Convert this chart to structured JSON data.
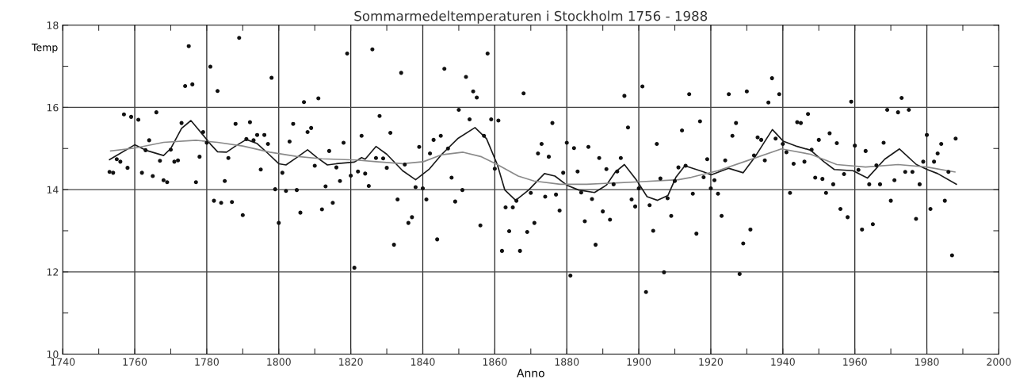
{
  "chart_data": {
    "type": "scatter",
    "title": "Sommarmedeltemperaturen i Stockholm 1756 - 1988",
    "xlabel": "Anno",
    "ylabel": "Temp",
    "xlim": [
      1740,
      2000
    ],
    "ylim": [
      10,
      18
    ],
    "xticks": [
      1740,
      {
        "value": 1750,
        "label": null
      },
      1760,
      {
        "value": 1770,
        "label": null
      },
      1780,
      {
        "value": 1790,
        "label": null
      },
      1800,
      {
        "value": 1810,
        "label": null
      },
      1820,
      {
        "value": 1830,
        "label": null
      },
      1840,
      {
        "value": 1850,
        "label": null
      },
      1860,
      {
        "value": 1870,
        "label": null
      },
      1880,
      {
        "value": 1890,
        "label": null
      },
      1900,
      {
        "value": 1910,
        "label": null
      },
      1920,
      {
        "value": 1930,
        "label": null
      },
      1940,
      {
        "value": 1950,
        "label": null
      },
      1960,
      {
        "value": 1970,
        "label": null
      },
      1980,
      {
        "value": 1990,
        "label": null
      },
      2000
    ],
    "yticks": [
      10,
      {
        "value": 11,
        "label": null
      },
      12,
      {
        "value": 13,
        "label": null
      },
      14,
      {
        "value": 15,
        "label": null
      },
      16,
      {
        "value": 17,
        "label": null
      },
      18
    ],
    "grid": true,
    "legend": false,
    "series": [
      {
        "color": "#111111",
        "marker": "circle",
        "x": [
          1753,
          1754,
          1755,
          1756,
          1757,
          1758,
          1759,
          1761,
          1762,
          1763,
          1764,
          1765,
          1766,
          1767,
          1768,
          1769,
          1770,
          1771,
          1772,
          1773,
          1774,
          1775,
          1776,
          1777,
          1778,
          1779,
          1780,
          1781,
          1782,
          1783,
          1784,
          1785,
          1786,
          1787,
          1788,
          1789,
          1790,
          1791,
          1792,
          1793,
          1794,
          1795,
          1796,
          1797,
          1798,
          1799,
          1800,
          1801,
          1802,
          1803,
          1804,
          1805,
          1806,
          1807,
          1808,
          1809,
          1810,
          1811,
          1812,
          1813,
          1814,
          1815,
          1816,
          1817,
          1818,
          1819,
          1820,
          1821,
          1822,
          1823,
          1824,
          1825,
          1826,
          1827,
          1828,
          1829,
          1830,
          1831,
          1832,
          1833,
          1834,
          1835,
          1836,
          1837,
          1838,
          1839,
          1840,
          1841,
          1842,
          1843,
          1844,
          1845,
          1846,
          1847,
          1848,
          1849,
          1850,
          1851,
          1852,
          1853,
          1854,
          1855,
          1856,
          1857,
          1858,
          1859,
          1860,
          1861,
          1862,
          1863,
          1864,
          1865,
          1866,
          1867,
          1868,
          1869,
          1870,
          1871,
          1872,
          1873,
          1874,
          1875,
          1876,
          1877,
          1878,
          1879,
          1880,
          1881,
          1882,
          1883,
          1884,
          1885,
          1886,
          1887,
          1888,
          1889,
          1890,
          1891,
          1892,
          1893,
          1894,
          1895,
          1896,
          1897,
          1898,
          1899,
          1900,
          1901,
          1902,
          1903,
          1904,
          1905,
          1906,
          1907,
          1908,
          1909,
          1910,
          1911,
          1912,
          1913,
          1914,
          1915,
          1916,
          1917,
          1918,
          1919,
          1920,
          1921,
          1922,
          1923,
          1924,
          1925,
          1926,
          1927,
          1928,
          1929,
          1930,
          1931,
          1932,
          1933,
          1934,
          1935,
          1936,
          1937,
          1938,
          1939,
          1940,
          1941,
          1942,
          1943,
          1944,
          1945,
          1946,
          1947,
          1948,
          1949,
          1950,
          1951,
          1952,
          1953,
          1954,
          1955,
          1956,
          1957,
          1958,
          1959,
          1960,
          1961,
          1962,
          1963,
          1964,
          1965,
          1966,
          1967,
          1968,
          1969,
          1970,
          1971,
          1972,
          1973,
          1974,
          1975,
          1976,
          1977,
          1978,
          1979,
          1980,
          1981,
          1982,
          1983,
          1984,
          1985,
          1986,
          1987,
          1988
        ],
        "values": [
          14.43,
          14.41,
          14.74,
          14.68,
          15.83,
          14.53,
          15.77,
          15.7,
          14.41,
          14.96,
          15.2,
          14.33,
          15.88,
          14.7,
          14.23,
          14.18,
          14.97,
          14.68,
          14.71,
          15.62,
          16.52,
          17.49,
          16.56,
          14.18,
          14.8,
          15.4,
          15.14,
          16.99,
          13.73,
          16.4,
          13.68,
          14.21,
          14.77,
          13.7,
          15.6,
          17.69,
          13.38,
          15.23,
          15.64,
          15.2,
          15.33,
          14.49,
          15.33,
          15.11,
          16.72,
          14.01,
          13.19,
          14.41,
          13.97,
          15.17,
          15.6,
          13.99,
          13.44,
          16.13,
          15.4,
          15.5,
          14.58,
          16.22,
          13.52,
          14.08,
          14.94,
          13.68,
          14.54,
          14.21,
          15.14,
          17.31,
          14.34,
          12.1,
          14.44,
          15.31,
          14.39,
          14.09,
          17.41,
          14.77,
          15.79,
          14.76,
          14.53,
          15.38,
          12.66,
          13.76,
          16.84,
          14.61,
          13.19,
          13.33,
          14.06,
          15.04,
          14.03,
          13.76,
          14.88,
          15.21,
          12.79,
          15.31,
          16.94,
          15.0,
          14.29,
          13.71,
          15.94,
          13.99,
          16.74,
          15.71,
          16.39,
          16.24,
          13.13,
          15.31,
          17.31,
          15.71,
          14.51,
          15.68,
          12.51,
          13.57,
          12.99,
          13.57,
          13.73,
          12.51,
          16.34,
          12.97,
          13.92,
          13.19,
          14.88,
          15.11,
          13.83,
          14.8,
          15.62,
          13.88,
          13.49,
          14.41,
          15.14,
          11.91,
          15.01,
          14.44,
          13.93,
          13.23,
          15.04,
          13.77,
          12.66,
          14.77,
          13.47,
          14.5,
          13.27,
          14.13,
          14.44,
          14.77,
          16.28,
          15.51,
          13.76,
          13.59,
          14.03,
          16.51,
          11.51,
          13.62,
          13.0,
          15.11,
          14.27,
          11.99,
          13.79,
          13.36,
          14.21,
          14.54,
          15.44,
          14.58,
          16.32,
          13.9,
          12.93,
          15.66,
          14.3,
          14.74,
          14.03,
          14.23,
          13.9,
          13.36,
          14.71,
          16.32,
          15.31,
          15.62,
          11.95,
          12.69,
          16.39,
          13.03,
          14.83,
          15.27,
          15.21,
          14.71,
          16.12,
          16.71,
          15.24,
          16.32,
          15.11,
          14.91,
          13.92,
          14.63,
          15.64,
          15.62,
          14.68,
          15.84,
          14.97,
          14.29,
          15.21,
          14.26,
          13.92,
          15.37,
          14.13,
          15.13,
          13.53,
          14.38,
          13.33,
          16.14,
          15.07,
          14.48,
          13.03,
          14.94,
          14.13,
          13.16,
          14.59,
          14.13,
          15.14,
          15.94,
          13.73,
          14.23,
          15.88,
          16.23,
          14.43,
          15.94,
          14.43,
          13.29,
          14.13,
          14.68,
          15.33,
          13.53,
          14.68,
          14.88,
          15.11,
          13.73,
          14.43,
          12.4,
          15.24
        ]
      },
      {
        "type": "line",
        "color": "#1a1a1a",
        "marker": "none",
        "line_style": "solid",
        "x": [
          1753,
          1760,
          1763,
          1768,
          1770,
          1773,
          1775.6,
          1778,
          1781,
          1783,
          1785.5,
          1788,
          1791,
          1794,
          1797,
          1800,
          1802,
          1805,
          1808,
          1810.6,
          1813.5,
          1816,
          1821,
          1823,
          1824,
          1827,
          1830,
          1834.4,
          1838,
          1841.7,
          1845.3,
          1849.7,
          1854.5,
          1857.7,
          1860.7,
          1862.8,
          1865.8,
          1869.4,
          1873.8,
          1876.7,
          1880,
          1883.3,
          1887.7,
          1891,
          1893.5,
          1896,
          1899.3,
          1902.3,
          1905.2,
          1908.1,
          1910.3,
          1912.8,
          1918,
          1920.1,
          1924.9,
          1929,
          1932.3,
          1937.1,
          1940.1,
          1944,
          1947.7,
          1951.4,
          1954.3,
          1959.5,
          1963.5,
          1968.3,
          1972.4,
          1977.1,
          1980.1,
          1983,
          1988.2
        ],
        "values": [
          14.73,
          15.09,
          14.96,
          14.83,
          15.0,
          15.49,
          15.68,
          15.43,
          15.11,
          14.92,
          14.91,
          15.06,
          15.22,
          15.12,
          14.88,
          14.63,
          14.6,
          14.78,
          14.97,
          14.78,
          14.6,
          14.63,
          14.67,
          14.78,
          14.74,
          15.05,
          14.86,
          14.46,
          14.24,
          14.49,
          14.86,
          15.24,
          15.51,
          15.24,
          14.61,
          13.99,
          13.74,
          13.99,
          14.39,
          14.33,
          14.11,
          13.99,
          13.93,
          14.11,
          14.43,
          14.61,
          14.24,
          13.83,
          13.74,
          13.86,
          14.3,
          14.58,
          14.43,
          14.36,
          14.52,
          14.41,
          14.8,
          15.46,
          15.18,
          15.05,
          14.96,
          14.68,
          14.49,
          14.46,
          14.28,
          14.74,
          14.99,
          14.61,
          14.49,
          14.39,
          14.13
        ]
      },
      {
        "type": "line",
        "color": "#8a8a8a",
        "marker": "none",
        "line_style": "solid",
        "x": [
          1753.3,
          1760,
          1768,
          1777,
          1783,
          1790,
          1797.5,
          1804.8,
          1812,
          1821.5,
          1827,
          1834.4,
          1840.2,
          1845.3,
          1851.2,
          1856.3,
          1860.7,
          1866.5,
          1870.9,
          1878.2,
          1885.5,
          1892.8,
          1900,
          1911,
          1914.6,
          1922,
          1929.3,
          1939.6,
          1947.7,
          1955,
          1963,
          1972,
          1980,
          1987.8
        ],
        "values": [
          14.94,
          15.01,
          15.15,
          15.2,
          15.15,
          15.06,
          14.91,
          14.81,
          14.75,
          14.72,
          14.68,
          14.63,
          14.68,
          14.85,
          14.91,
          14.8,
          14.61,
          14.33,
          14.21,
          14.13,
          14.13,
          14.16,
          14.19,
          14.24,
          14.3,
          14.46,
          14.68,
          14.99,
          14.86,
          14.61,
          14.55,
          14.61,
          14.55,
          14.43
        ]
      }
    ]
  }
}
